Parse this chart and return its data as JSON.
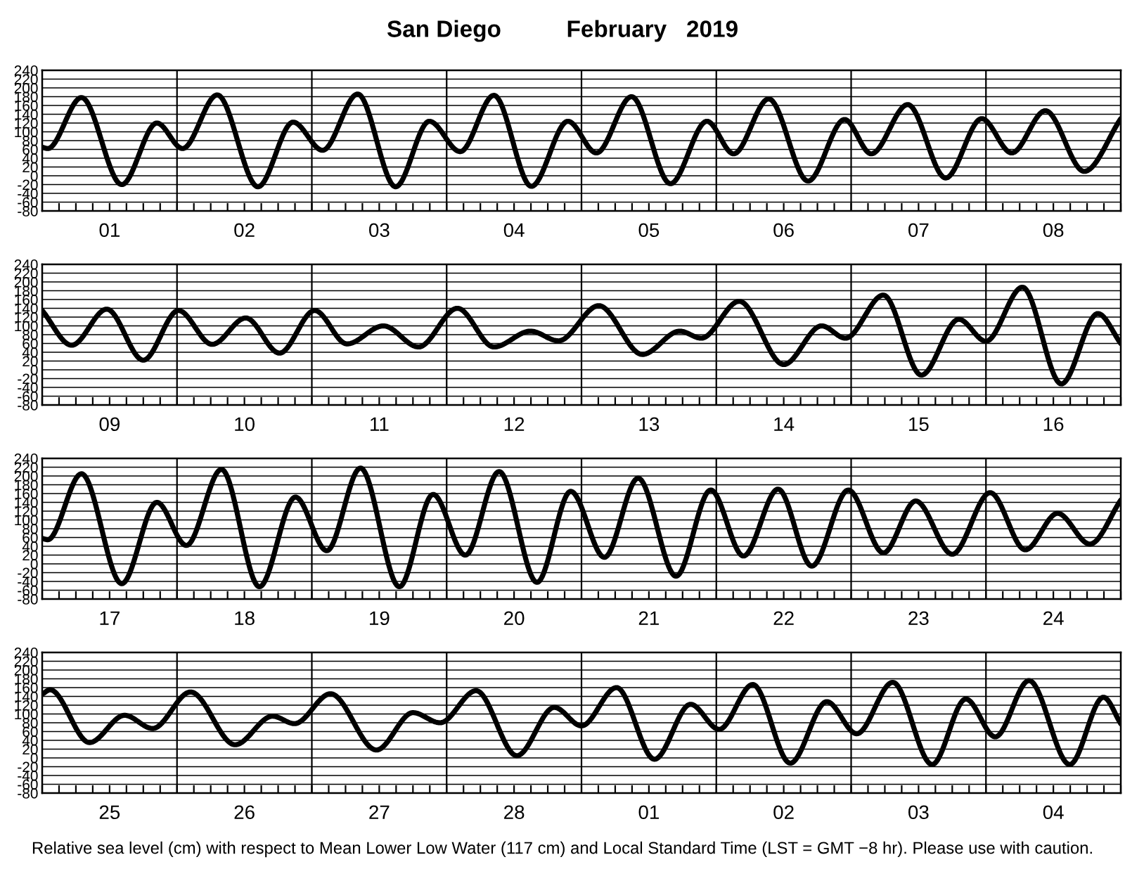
{
  "chart_data": [
    {
      "type": "line",
      "title": "San Diego          February   2019",
      "xlim": [
        "2019-02-01T00:00",
        "2019-02-09T00:00"
      ],
      "ylim": [
        -80,
        240
      ],
      "yticks": [
        -80,
        -60,
        -40,
        -20,
        0,
        20,
        40,
        60,
        80,
        100,
        120,
        140,
        160,
        180,
        200,
        220,
        240
      ],
      "grid": "y",
      "line_style": "solid",
      "marker": "none",
      "xticks": [
        {
          "value": "2019-02-01T12:00",
          "label": "01"
        },
        {
          "value": "2019-02-02T12:00",
          "label": "02"
        },
        {
          "value": "2019-02-03T12:00",
          "label": "03"
        },
        {
          "value": "2019-02-04T12:00",
          "label": "04"
        },
        {
          "value": "2019-02-05T12:00",
          "label": "05"
        },
        {
          "value": "2019-02-06T12:00",
          "label": "06"
        },
        {
          "value": "2019-02-07T12:00",
          "label": "07"
        },
        {
          "value": "2019-02-08T12:00",
          "label": "08"
        }
      ],
      "ref_lines": [
        {
          "axis": "x",
          "value": "2019-02-02T00:00",
          "color": "#000000"
        },
        {
          "axis": "x",
          "value": "2019-02-03T00:00",
          "color": "#000000"
        },
        {
          "axis": "x",
          "value": "2019-02-04T00:00",
          "color": "#000000"
        },
        {
          "axis": "x",
          "value": "2019-02-05T00:00",
          "color": "#000000"
        },
        {
          "axis": "x",
          "value": "2019-02-06T00:00",
          "color": "#000000"
        },
        {
          "axis": "x",
          "value": "2019-02-07T00:00",
          "color": "#000000"
        },
        {
          "axis": "x",
          "value": "2019-02-08T00:00",
          "color": "#000000"
        }
      ],
      "series": [
        {
          "color": "#000000",
          "x": [
            "2019-02-01T00:00",
            "2019-02-01T01:00",
            "2019-02-01T07:00",
            "2019-02-01T14:10",
            "2019-02-01T20:25",
            "2019-02-02T01:00",
            "2019-02-02T07:10",
            "2019-02-02T14:25",
            "2019-02-02T20:40",
            "2019-02-03T01:55",
            "2019-02-03T08:10",
            "2019-02-03T14:55",
            "2019-02-03T20:55",
            "2019-02-04T02:25",
            "2019-02-04T08:25",
            "2019-02-04T15:05",
            "2019-02-04T21:35",
            "2019-02-05T02:40",
            "2019-02-05T08:55",
            "2019-02-05T15:50",
            "2019-02-05T22:20",
            "2019-02-06T03:05",
            "2019-02-06T09:20",
            "2019-02-06T16:20",
            "2019-02-06T22:50",
            "2019-02-07T03:35",
            "2019-02-07T10:05",
            "2019-02-07T16:50",
            "2019-02-07T23:15",
            "2019-02-08T04:35",
            "2019-02-08T10:35",
            "2019-02-08T17:30",
            "2019-02-09T00:00"
          ],
          "values": [
            65,
            62,
            178,
            -20,
            120,
            62,
            184,
            -25,
            122,
            58,
            186,
            -25,
            124,
            55,
            183,
            -24,
            124,
            52,
            180,
            -18,
            124,
            50,
            175,
            -12,
            128,
            50,
            162,
            -5,
            130,
            52,
            148,
            10,
            130
          ]
        }
      ]
    },
    {
      "type": "line",
      "xlim": [
        "2019-02-09T00:00",
        "2019-02-17T00:00"
      ],
      "ylim": [
        -80,
        240
      ],
      "yticks": [
        -80,
        -60,
        -40,
        -20,
        0,
        20,
        40,
        60,
        80,
        100,
        120,
        140,
        160,
        180,
        200,
        220,
        240
      ],
      "grid": "y",
      "line_style": "solid",
      "marker": "none",
      "xticks": [
        {
          "value": "2019-02-09T12:00",
          "label": "09"
        },
        {
          "value": "2019-02-10T12:00",
          "label": "10"
        },
        {
          "value": "2019-02-11T12:00",
          "label": "11"
        },
        {
          "value": "2019-02-12T12:00",
          "label": "12"
        },
        {
          "value": "2019-02-13T12:00",
          "label": "13"
        },
        {
          "value": "2019-02-14T12:00",
          "label": "14"
        },
        {
          "value": "2019-02-15T12:00",
          "label": "15"
        },
        {
          "value": "2019-02-16T12:00",
          "label": "16"
        }
      ],
      "ref_lines": [
        {
          "axis": "x",
          "value": "2019-02-10T00:00",
          "color": "#000000"
        },
        {
          "axis": "x",
          "value": "2019-02-11T00:00",
          "color": "#000000"
        },
        {
          "axis": "x",
          "value": "2019-02-12T00:00",
          "color": "#000000"
        },
        {
          "axis": "x",
          "value": "2019-02-13T00:00",
          "color": "#000000"
        },
        {
          "axis": "x",
          "value": "2019-02-14T00:00",
          "color": "#000000"
        },
        {
          "axis": "x",
          "value": "2019-02-15T00:00",
          "color": "#000000"
        },
        {
          "axis": "x",
          "value": "2019-02-16T00:00",
          "color": "#000000"
        }
      ],
      "series": [
        {
          "color": "#000000",
          "x": [
            "2019-02-09T00:00",
            "2019-02-09T05:15",
            "2019-02-09T11:30",
            "2019-02-09T18:00",
            "2019-02-10T00:15",
            "2019-02-10T06:15",
            "2019-02-10T12:15",
            "2019-02-10T18:15",
            "2019-02-11T00:30",
            "2019-02-11T06:15",
            "2019-02-11T12:45",
            "2019-02-11T19:00",
            "2019-02-12T01:55",
            "2019-02-12T08:25",
            "2019-02-12T14:55",
            "2019-02-12T19:55",
            "2019-02-13T03:05",
            "2019-02-13T10:50",
            "2019-02-13T17:30",
            "2019-02-13T21:20",
            "2019-02-14T04:05",
            "2019-02-14T12:00",
            "2019-02-14T18:45",
            "2019-02-14T23:00",
            "2019-02-15T05:45",
            "2019-02-15T12:30",
            "2019-02-15T19:10",
            "2019-02-16T00:00",
            "2019-02-16T06:30",
            "2019-02-16T13:25",
            "2019-02-16T19:55",
            "2019-02-17T00:00"
          ],
          "values": [
            135,
            56,
            138,
            22,
            135,
            58,
            118,
            38,
            135,
            59,
            100,
            52,
            140,
            52,
            88,
            66,
            146,
            35,
            88,
            72,
            156,
            12,
            100,
            72,
            170,
            -12,
            115,
            65,
            188,
            -32,
            128,
            60
          ]
        }
      ]
    },
    {
      "type": "line",
      "xlim": [
        "2019-02-17T00:00",
        "2019-02-25T00:00"
      ],
      "ylim": [
        -80,
        240
      ],
      "yticks": [
        -80,
        -60,
        -40,
        -20,
        0,
        20,
        40,
        60,
        80,
        100,
        120,
        140,
        160,
        180,
        200,
        220,
        240
      ],
      "grid": "y",
      "line_style": "solid",
      "marker": "none",
      "xticks": [
        {
          "value": "2019-02-17T12:00",
          "label": "17"
        },
        {
          "value": "2019-02-18T12:00",
          "label": "18"
        },
        {
          "value": "2019-02-19T12:00",
          "label": "19"
        },
        {
          "value": "2019-02-20T12:00",
          "label": "20"
        },
        {
          "value": "2019-02-21T12:00",
          "label": "21"
        },
        {
          "value": "2019-02-22T12:00",
          "label": "22"
        },
        {
          "value": "2019-02-23T12:00",
          "label": "23"
        },
        {
          "value": "2019-02-24T12:00",
          "label": "24"
        }
      ],
      "ref_lines": [
        {
          "axis": "x",
          "value": "2019-02-18T00:00",
          "color": "#000000"
        },
        {
          "axis": "x",
          "value": "2019-02-19T00:00",
          "color": "#000000"
        },
        {
          "axis": "x",
          "value": "2019-02-20T00:00",
          "color": "#000000"
        },
        {
          "axis": "x",
          "value": "2019-02-21T00:00",
          "color": "#000000"
        },
        {
          "axis": "x",
          "value": "2019-02-22T00:00",
          "color": "#000000"
        },
        {
          "axis": "x",
          "value": "2019-02-23T00:00",
          "color": "#000000"
        },
        {
          "axis": "x",
          "value": "2019-02-24T00:00",
          "color": "#000000"
        }
      ],
      "series": [
        {
          "color": "#000000",
          "x": [
            "2019-02-17T00:00",
            "2019-02-17T01:00",
            "2019-02-17T07:00",
            "2019-02-17T14:10",
            "2019-02-17T20:25",
            "2019-02-18T01:40",
            "2019-02-18T07:55",
            "2019-02-18T14:40",
            "2019-02-18T21:05",
            "2019-02-19T02:40",
            "2019-02-19T08:40",
            "2019-02-19T15:35",
            "2019-02-19T21:35",
            "2019-02-20T03:20",
            "2019-02-20T09:20",
            "2019-02-20T16:05",
            "2019-02-20T22:05",
            "2019-02-21T04:05",
            "2019-02-21T10:05",
            "2019-02-21T16:50",
            "2019-02-21T23:00",
            "2019-02-22T04:50",
            "2019-02-22T11:00",
            "2019-02-22T17:00",
            "2019-02-22T23:30",
            "2019-02-23T05:45",
            "2019-02-23T11:30",
            "2019-02-23T18:00",
            "2019-02-24T00:45",
            "2019-02-24T07:00",
            "2019-02-24T12:45",
            "2019-02-24T18:30",
            "2019-02-25T00:00"
          ],
          "values": [
            58,
            55,
            205,
            -45,
            140,
            42,
            215,
            -52,
            152,
            30,
            218,
            -52,
            158,
            20,
            210,
            -42,
            165,
            15,
            195,
            -28,
            168,
            18,
            170,
            -5,
            168,
            25,
            143,
            22,
            162,
            32,
            115,
            45,
            145
          ]
        }
      ]
    },
    {
      "type": "line",
      "xlim": [
        "2019-02-25T00:00",
        "2019-03-05T00:00"
      ],
      "ylim": [
        -80,
        240
      ],
      "yticks": [
        -80,
        -60,
        -40,
        -20,
        0,
        20,
        40,
        60,
        80,
        100,
        120,
        140,
        160,
        180,
        200,
        220,
        240
      ],
      "grid": "y",
      "line_style": "solid",
      "marker": "none",
      "xticks": [
        {
          "value": "2019-02-25T12:00",
          "label": "25"
        },
        {
          "value": "2019-02-26T12:00",
          "label": "26"
        },
        {
          "value": "2019-02-27T12:00",
          "label": "27"
        },
        {
          "value": "2019-02-28T12:00",
          "label": "28"
        },
        {
          "value": "2019-03-01T12:00",
          "label": "01"
        },
        {
          "value": "2019-03-02T12:00",
          "label": "02"
        },
        {
          "value": "2019-03-03T12:00",
          "label": "03"
        },
        {
          "value": "2019-03-04T12:00",
          "label": "04"
        }
      ],
      "ref_lines": [
        {
          "axis": "x",
          "value": "2019-02-26T00:00",
          "color": "#000000"
        },
        {
          "axis": "x",
          "value": "2019-02-27T00:00",
          "color": "#000000"
        },
        {
          "axis": "x",
          "value": "2019-02-28T00:00",
          "color": "#000000"
        },
        {
          "axis": "x",
          "value": "2019-03-01T00:00",
          "color": "#000000"
        },
        {
          "axis": "x",
          "value": "2019-03-02T00:00",
          "color": "#000000"
        },
        {
          "axis": "x",
          "value": "2019-03-03T00:00",
          "color": "#000000"
        },
        {
          "axis": "x",
          "value": "2019-03-04T00:00",
          "color": "#000000"
        }
      ],
      "annotations": [
        "Relative sea level (cm) with respect to Mean Lower Low Water (117 cm) and Local Standard Time (LST = GMT −8 hr). Please use with caution."
      ],
      "series": [
        {
          "color": "#000000",
          "x": [
            "2019-02-25T00:00",
            "2019-02-25T01:25",
            "2019-02-25T08:25",
            "2019-02-25T14:40",
            "2019-02-25T19:40",
            "2019-02-26T02:25",
            "2019-02-26T10:20",
            "2019-02-26T17:00",
            "2019-02-26T20:55",
            "2019-02-27T03:20",
            "2019-02-27T11:30",
            "2019-02-27T18:00",
            "2019-02-27T22:50",
            "2019-02-28T05:15",
            "2019-02-28T12:30",
            "2019-02-28T19:10",
            "2019-03-01T00:00",
            "2019-03-01T06:15",
            "2019-03-01T13:00",
            "2019-03-01T19:25",
            "2019-03-02T00:30",
            "2019-03-02T06:30",
            "2019-03-02T13:10",
            "2019-03-02T19:40",
            "2019-03-03T01:00",
            "2019-03-03T07:25",
            "2019-03-03T14:25",
            "2019-03-03T20:25",
            "2019-03-04T01:40",
            "2019-03-04T07:40",
            "2019-03-04T14:55",
            "2019-03-04T20:55",
            "2019-03-05T00:00"
          ],
          "values": [
            145,
            155,
            35,
            97,
            67,
            150,
            30,
            95,
            78,
            146,
            18,
            103,
            80,
            153,
            5,
            115,
            73,
            160,
            -3,
            122,
            65,
            167,
            -12,
            128,
            55,
            172,
            -15,
            134,
            48,
            176,
            -15,
            138,
            78
          ]
        }
      ]
    }
  ]
}
